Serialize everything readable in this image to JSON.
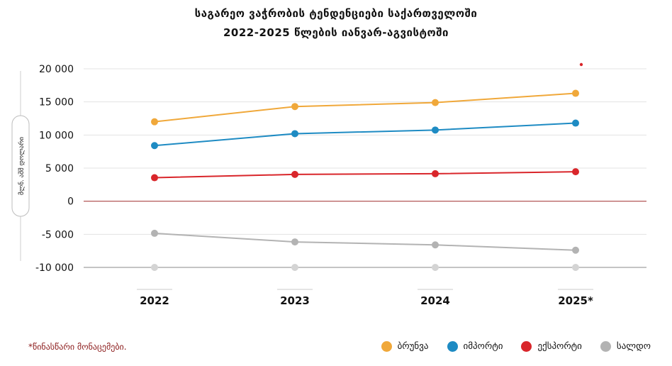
{
  "title_line1": "საგარეო  ვაჭრობის ტენდენციები საქართველოში",
  "title_line2": "2022-2025 წლების იანვარ-აგვისტოში",
  "note": "*წინასწარი მონაცემები.",
  "chart_data": {
    "type": "line",
    "categories": [
      "2022",
      "2023",
      "2024",
      "2025*"
    ],
    "ylabel": "მლნ. აშშ დოლარი",
    "ylim": [
      -10000,
      20000
    ],
    "yticks": [
      20000,
      15000,
      10000,
      5000,
      0,
      -5000,
      -10000
    ],
    "ytick_labels": [
      "20 000",
      "15 000",
      "10 000",
      "5 000",
      "0",
      "-5 000",
      "-10 000"
    ],
    "grid": true,
    "legend_position": "bottom-right",
    "series": [
      {
        "name": "ბრუნვა",
        "color": "#f0a83a",
        "values": [
          12000,
          14300,
          14900,
          16300
        ]
      },
      {
        "name": "იმპორტი",
        "color": "#1e8bc3",
        "values": [
          8400,
          10200,
          10750,
          11800
        ]
      },
      {
        "name": "ექსპორტი",
        "color": "#d9262b",
        "values": [
          3550,
          4050,
          4150,
          4450
        ]
      },
      {
        "name": "სალდო",
        "color": "#b3b3b3",
        "values": [
          -4850,
          -6150,
          -6600,
          -7400
        ]
      }
    ]
  }
}
